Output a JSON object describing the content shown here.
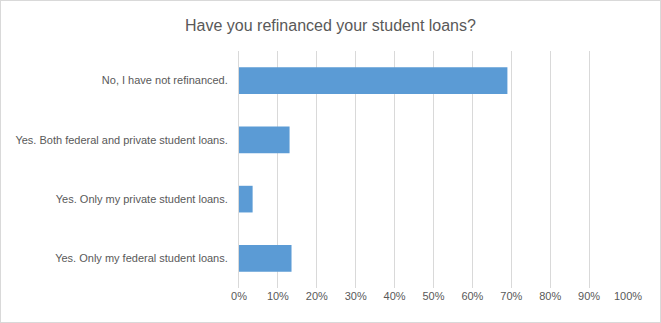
{
  "chart_data": {
    "type": "bar",
    "orientation": "horizontal",
    "title": "Have you refinanced your student loans?",
    "categories": [
      "No, I have not refinanced.",
      "Yes. Both federal and private student loans.",
      "Yes. Only my private student loans.",
      "Yes. Only my federal student loans."
    ],
    "values": [
      69,
      13,
      3.5,
      13.5
    ],
    "color": "#5b9bd5",
    "xlim": [
      0,
      100
    ],
    "xticks": [
      {
        "value": 0,
        "label": "0%"
      },
      {
        "value": 10,
        "label": "10%"
      },
      {
        "value": 20,
        "label": "20%"
      },
      {
        "value": 30,
        "label": "30%"
      },
      {
        "value": 40,
        "label": "40%"
      },
      {
        "value": 50,
        "label": "50%"
      },
      {
        "value": 60,
        "label": "60%"
      },
      {
        "value": 70,
        "label": "70%"
      },
      {
        "value": 80,
        "label": "80%"
      },
      {
        "value": 90,
        "label": "90%"
      },
      {
        "value": 100,
        "label": "100%"
      }
    ],
    "grid": true
  }
}
